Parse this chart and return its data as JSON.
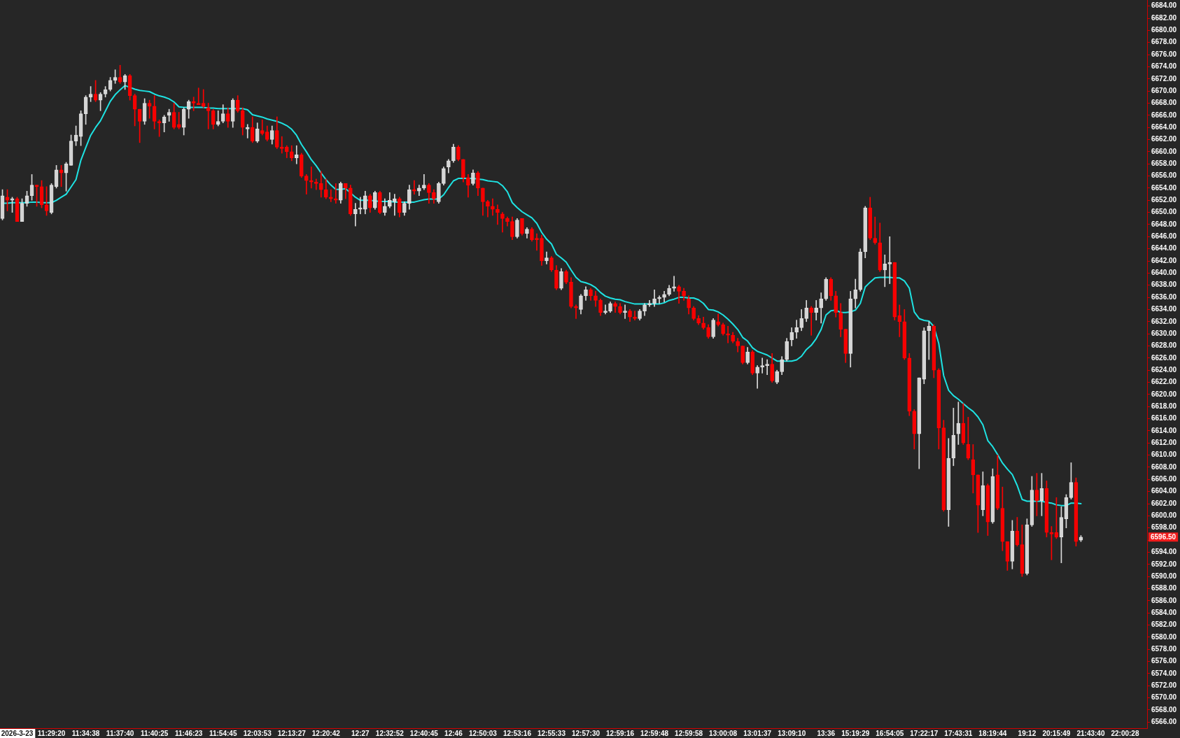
{
  "chart_data": {
    "type": "candlestick",
    "categories": [
      null,
      null,
      null,
      "2026-3-23",
      null,
      null,
      null,
      null,
      null,
      null,
      "11:29:20",
      null,
      null,
      null,
      null,
      null,
      null,
      "11:34:38",
      null,
      null,
      null,
      null,
      null,
      null,
      "11:37:40",
      null,
      null,
      null,
      null,
      null,
      null,
      "11:40:25",
      null,
      null,
      null,
      null,
      null,
      null,
      "11:46:23",
      null,
      null,
      null,
      null,
      null,
      null,
      "11:54:45",
      null,
      null,
      null,
      null,
      null,
      null,
      "12:03:53",
      null,
      null,
      null,
      null,
      null,
      null,
      "12:13:27",
      null,
      null,
      null,
      null,
      null,
      null,
      "12:20:42",
      null,
      null,
      null,
      null,
      null,
      null,
      "12:27",
      null,
      null,
      null,
      null,
      null,
      "12:32:52",
      null,
      null,
      null,
      null,
      null,
      null,
      "12:40:45",
      null,
      null,
      null,
      null,
      null,
      "12:46",
      null,
      null,
      null,
      null,
      null,
      "12:50:03",
      null,
      null,
      null,
      null,
      null,
      null,
      "12:53:16",
      null,
      null,
      null,
      null,
      null,
      null,
      "12:55:33",
      null,
      null,
      null,
      null,
      null,
      null,
      "12:57:30",
      null,
      null,
      null,
      null,
      null,
      null,
      "12:59:16",
      null,
      null,
      null,
      null,
      null,
      null,
      "12:59:48",
      null,
      null,
      null,
      null,
      null,
      null,
      "12:59:58",
      null,
      null,
      null,
      null,
      null,
      null,
      "13:00:08",
      null,
      null,
      null,
      null,
      null,
      null,
      "13:01:37",
      null,
      null,
      null,
      null,
      null,
      null,
      "13:09:10",
      null,
      null,
      null,
      null,
      null,
      null,
      "13:36",
      null,
      null,
      null,
      null,
      null,
      "15:19:29",
      null,
      null,
      null,
      null,
      null,
      null,
      "16:54:05",
      null,
      null,
      null,
      null,
      null,
      null,
      "17:22:17",
      null,
      null,
      null,
      null,
      null,
      null,
      "17:43:31",
      null,
      null,
      null,
      null,
      null,
      null,
      "18:19:44",
      null,
      null,
      null,
      null,
      null,
      null,
      "19:12",
      null,
      null,
      null,
      null,
      null,
      "20:15:49",
      null,
      null,
      null,
      null,
      null,
      null,
      "21:43:40",
      null,
      null,
      null,
      null,
      null,
      null,
      "22:00:28",
      null,
      null,
      null,
      null
    ],
    "ohlc": [
      [
        6649,
        6653.75,
        6648.75,
        6652.75
      ],
      [
        6652.5,
        6653.75,
        6650.25,
        6652
      ],
      [
        6652,
        6652.5,
        6650,
        6652.25
      ],
      [
        6652.25,
        6652.5,
        6648.5,
        6648.5
      ],
      [
        6648.5,
        6652.25,
        6648.5,
        6651.5
      ],
      [
        6651.5,
        6653.5,
        6651,
        6652.75
      ],
      [
        6652.75,
        6656.25,
        6652,
        6654.5
      ],
      [
        6654.5,
        6654.5,
        6651,
        6654.25
      ],
      [
        6654.25,
        6655.25,
        6650.75,
        6651.25
      ],
      [
        6651.25,
        6654.25,
        6649.5,
        6650.25
      ],
      [
        6650,
        6654.75,
        6649.75,
        6654.5
      ],
      [
        6654.25,
        6657.75,
        6654,
        6657
      ],
      [
        6657,
        6657.75,
        6654.25,
        6656.5
      ],
      [
        6656.5,
        6658.25,
        6653.5,
        6658
      ],
      [
        6657.75,
        6662.75,
        6657.75,
        6661.75
      ],
      [
        6661.75,
        6664.25,
        6661,
        6662.75
      ],
      [
        6662.5,
        6666.75,
        6661,
        6666.25
      ],
      [
        6666.25,
        6669.25,
        6664.5,
        6669
      ],
      [
        6669,
        6670.75,
        6668.25,
        6669.5
      ],
      [
        6669.5,
        6671.75,
        6668.25,
        6668.5
      ],
      [
        6668.5,
        6669.75,
        6666.75,
        6669.5
      ],
      [
        6669.5,
        6670.75,
        6669,
        6670.25
      ],
      [
        6670.25,
        6672.25,
        6670,
        6671.75
      ],
      [
        6671.75,
        6673.5,
        6671.25,
        6672.25
      ],
      [
        6672.25,
        6674.25,
        6671.25,
        6671.5
      ],
      [
        6671.5,
        6672.75,
        6670.25,
        6672.5
      ],
      [
        6672.5,
        6672.75,
        6668.5,
        6669.25
      ],
      [
        6669.25,
        6669.5,
        6664.25,
        6667
      ],
      [
        6667,
        6667,
        6661.5,
        6665
      ],
      [
        6665,
        6668.75,
        6664.5,
        6668
      ],
      [
        6668,
        6668.5,
        6665.5,
        6667.5
      ],
      [
        6667.5,
        6669.25,
        6663.75,
        6665
      ],
      [
        6665,
        6665.25,
        6662.5,
        6664.75
      ],
      [
        6664.75,
        6666,
        6663.25,
        6665.75
      ],
      [
        6666,
        6667,
        6665,
        6666.5
      ],
      [
        6666.5,
        6668,
        6663.75,
        6664
      ],
      [
        6664.5,
        6666.5,
        6663.75,
        6664
      ],
      [
        6664,
        6667.25,
        6662.75,
        6667
      ],
      [
        6667,
        6668.5,
        6665.5,
        6668.25
      ],
      [
        6668.25,
        6669,
        6666.75,
        6668
      ],
      [
        6668,
        6670.5,
        6667.75,
        6667.75
      ],
      [
        6668,
        6670.25,
        6667.25,
        6667.5
      ],
      [
        6667.25,
        6668,
        6663.75,
        6666.75
      ],
      [
        6666.75,
        6667,
        6663.75,
        6664.5
      ],
      [
        6664.5,
        6666.75,
        6664.25,
        6665
      ],
      [
        6665,
        6667.75,
        6664.75,
        6666.25
      ],
      [
        6666.25,
        6667.25,
        6664,
        6665
      ],
      [
        6665,
        6668.75,
        6664,
        6668.5
      ],
      [
        6668.5,
        6669.25,
        6666.5,
        6666.75
      ],
      [
        6666.75,
        6667.25,
        6662.75,
        6664
      ],
      [
        6663.75,
        6664.5,
        6662.25,
        6664
      ],
      [
        6664,
        6665.75,
        6661.5,
        6661.75
      ],
      [
        6661.75,
        6664.75,
        6661.5,
        6663.75
      ],
      [
        6663.5,
        6665.25,
        6662.75,
        6663
      ],
      [
        6663.25,
        6664.25,
        6661.75,
        6662
      ],
      [
        6662,
        6664.25,
        6661.25,
        6663.5
      ],
      [
        6663.5,
        6665.75,
        6660.5,
        6660.75
      ],
      [
        6660.75,
        6662.5,
        6659.75,
        6660.5
      ],
      [
        6660.75,
        6661,
        6659,
        6660
      ],
      [
        6660,
        6661,
        6658.5,
        6659
      ],
      [
        6659,
        6661,
        6658,
        6659.5
      ],
      [
        6659.5,
        6659.75,
        6655.75,
        6656
      ],
      [
        6656,
        6656.25,
        6653,
        6655.25
      ],
      [
        6655.25,
        6657.5,
        6654,
        6655
      ],
      [
        6655,
        6655.5,
        6653.75,
        6654.75
      ],
      [
        6654.75,
        6656.75,
        6652.5,
        6653.75
      ],
      [
        6653.75,
        6655.5,
        6652.25,
        6652.5
      ],
      [
        6652.5,
        6653.75,
        6651.75,
        6652.25
      ],
      [
        6652.25,
        6654.75,
        6651.5,
        6652
      ],
      [
        6652,
        6655,
        6651.5,
        6654.75
      ],
      [
        6654.75,
        6654.75,
        6652.25,
        6654
      ],
      [
        6654,
        6654.5,
        6649.5,
        6649.75
      ],
      [
        6649.75,
        6651.5,
        6647.75,
        6650.5
      ],
      [
        6650.5,
        6652.5,
        6649.75,
        6650.75
      ],
      [
        6650.5,
        6653.5,
        6649.75,
        6652.75
      ],
      [
        6652.75,
        6653,
        6650,
        6650.75
      ],
      [
        6650.75,
        6653.5,
        6650.5,
        6653.25
      ],
      [
        6653.25,
        6653.5,
        6649.75,
        6650
      ],
      [
        6650,
        6652.25,
        6649.5,
        6651
      ],
      [
        6651,
        6653.25,
        6650.75,
        6652
      ],
      [
        6651.75,
        6653,
        6649.5,
        6652.25
      ],
      [
        6652.25,
        6652.5,
        6649.25,
        6650
      ],
      [
        6650,
        6651.75,
        6649.5,
        6651.5
      ],
      [
        6651.5,
        6654.5,
        6650.5,
        6653.75
      ],
      [
        6653.75,
        6655.25,
        6653,
        6653.5
      ],
      [
        6653.5,
        6654.5,
        6652.75,
        6654
      ],
      [
        6654,
        6656.25,
        6653.75,
        6654.5
      ],
      [
        6654.5,
        6654.75,
        6651.5,
        6653.25
      ],
      [
        6653.25,
        6653.75,
        6651.5,
        6652.25
      ],
      [
        6651.75,
        6655,
        6651.5,
        6654.75
      ],
      [
        6654.75,
        6657.5,
        6654.5,
        6657.25
      ],
      [
        6657.5,
        6658.75,
        6656.5,
        6658.5
      ],
      [
        6658.5,
        6661.25,
        6658.25,
        6660.75
      ],
      [
        6660.75,
        6661,
        6658.5,
        6658.75
      ],
      [
        6658.75,
        6658.75,
        6655,
        6655.75
      ],
      [
        6655.75,
        6656.25,
        6652.5,
        6654.5
      ],
      [
        6654.75,
        6657,
        6654.5,
        6656.5
      ],
      [
        6656.5,
        6656.75,
        6652.75,
        6654
      ],
      [
        6654,
        6654,
        6649.5,
        6651.75
      ],
      [
        6651.75,
        6652,
        6649.25,
        6651
      ],
      [
        6651,
        6652.25,
        6649.5,
        6650.5
      ],
      [
        6650.5,
        6651.25,
        6648,
        6650
      ],
      [
        6649.75,
        6650,
        6646.75,
        6649
      ],
      [
        6649,
        6649.25,
        6647.75,
        6648.5
      ],
      [
        6648.5,
        6649.25,
        6645.5,
        6646
      ],
      [
        6646,
        6649,
        6645.75,
        6648.75
      ],
      [
        6649,
        6649,
        6646.25,
        6646.5
      ],
      [
        6646.5,
        6647.5,
        6645.75,
        6647.25
      ],
      [
        6647.25,
        6647.5,
        6645.25,
        6645.5
      ],
      [
        6645.75,
        6646.5,
        6643.75,
        6645.5
      ],
      [
        6645.75,
        6646.25,
        6641.25,
        6642
      ],
      [
        6642,
        6643.5,
        6641.5,
        6642.5
      ],
      [
        6642.5,
        6642.75,
        6640.25,
        6640.5
      ],
      [
        6640.5,
        6641.25,
        6637.25,
        6637.5
      ],
      [
        6637.5,
        6640.75,
        6637.25,
        6640.25
      ],
      [
        6640.25,
        6640.5,
        6638.25,
        6638.5
      ],
      [
        6638.5,
        6639.25,
        6634.25,
        6634.5
      ],
      [
        6634.5,
        6634.75,
        6632.5,
        6634.25
      ],
      [
        6634,
        6636.5,
        6633.25,
        6636.25
      ],
      [
        6636.25,
        6637.75,
        6635.5,
        6637.25
      ],
      [
        6637.25,
        6637.5,
        6635.5,
        6636.25
      ],
      [
        6636.25,
        6637,
        6634.5,
        6635.5
      ],
      [
        6635.5,
        6635.75,
        6633,
        6633.5
      ],
      [
        6633.5,
        6634.75,
        6633.25,
        6633.75
      ],
      [
        6633.75,
        6635.25,
        6633.5,
        6635
      ],
      [
        6635,
        6635.25,
        6633.5,
        6634.5
      ],
      [
        6634.5,
        6635,
        6633.25,
        6633.5
      ],
      [
        6633.5,
        6634.75,
        6632.5,
        6633.75
      ],
      [
        6633.75,
        6634,
        6632,
        6632.75
      ],
      [
        6632.75,
        6633.75,
        6632.25,
        6632.5
      ],
      [
        6632.5,
        6634,
        6632.25,
        6633.75
      ],
      [
        6633.75,
        6635,
        6633,
        6634.75
      ],
      [
        6634.75,
        6635.5,
        6634.5,
        6635
      ],
      [
        6635,
        6637.25,
        6634.5,
        6635.75
      ],
      [
        6635.75,
        6636.25,
        6635,
        6636
      ],
      [
        6636,
        6637,
        6635.25,
        6636.5
      ],
      [
        6636.5,
        6638,
        6636.25,
        6637.5
      ],
      [
        6637.5,
        6639.5,
        6637,
        6637.75
      ],
      [
        6637.75,
        6638,
        6635,
        6637
      ],
      [
        6637,
        6637.5,
        6635.5,
        6636.25
      ],
      [
        6635.75,
        6636.25,
        6633.25,
        6634.25
      ],
      [
        6634.25,
        6634.5,
        6632.25,
        6632.5
      ],
      [
        6632.5,
        6633,
        6631.5,
        6631.75
      ],
      [
        6631.75,
        6632.75,
        6630.75,
        6631
      ],
      [
        6631,
        6631.5,
        6629.25,
        6629.5
      ],
      [
        6629.5,
        6632.5,
        6629.25,
        6632.25
      ],
      [
        6632,
        6633.25,
        6631.25,
        6631.5
      ],
      [
        6631.5,
        6631.75,
        6629.75,
        6630
      ],
      [
        6630,
        6631.25,
        6628.5,
        6629.75
      ],
      [
        6629.75,
        6630.25,
        6628.5,
        6628.75
      ],
      [
        6628.75,
        6629.25,
        6627,
        6628
      ],
      [
        6628,
        6628,
        6625,
        6625.25
      ],
      [
        6625.25,
        6627.75,
        6625,
        6627
      ],
      [
        6627,
        6627.25,
        6623.25,
        6623.5
      ],
      [
        6623.5,
        6624.75,
        6621,
        6624.5
      ],
      [
        6624.5,
        6626,
        6623.5,
        6624.75
      ],
      [
        6624.75,
        6625.75,
        6623.25,
        6625
      ],
      [
        6625,
        6626.75,
        6622,
        6622.25
      ],
      [
        6622,
        6624,
        6621.75,
        6623.75
      ],
      [
        6623.75,
        6626.25,
        6623.25,
        6625.75
      ],
      [
        6625.75,
        6629.25,
        6625.5,
        6628.75
      ],
      [
        6629,
        6631,
        6628,
        6630.25
      ],
      [
        6630.25,
        6632.25,
        6629.25,
        6631
      ],
      [
        6631,
        6634,
        6630.5,
        6632.5
      ],
      [
        6632.5,
        6635.5,
        6632,
        6634.25
      ],
      [
        6634.25,
        6634.5,
        6629.75,
        6633.5
      ],
      [
        6633.5,
        6635.5,
        6632.25,
        6634.25
      ],
      [
        6634.25,
        6636.75,
        6631.75,
        6635.75
      ],
      [
        6635.75,
        6639.25,
        6635.5,
        6639
      ],
      [
        6639,
        6639.25,
        6635.5,
        6636.25
      ],
      [
        6636.25,
        6637,
        6632.75,
        6633.5
      ],
      [
        6633.5,
        6635,
        6629.5,
        6630.75
      ],
      [
        6630.75,
        6630.75,
        6625.25,
        6626.75
      ],
      [
        6626.75,
        6637,
        6624.5,
        6635.75
      ],
      [
        6635.75,
        6639,
        6634.25,
        6637.25
      ],
      [
        6637.25,
        6644,
        6637,
        6643.5
      ],
      [
        6643.5,
        6651,
        6642.5,
        6650.75
      ],
      [
        6650.75,
        6652.5,
        6645.5,
        6645.75
      ],
      [
        6645.75,
        6649.25,
        6644.75,
        6645
      ],
      [
        6645,
        6648.25,
        6640.25,
        6640.5
      ],
      [
        6640.5,
        6643,
        6637.75,
        6641.5
      ],
      [
        6641.5,
        6646,
        6638.25,
        6641.75
      ],
      [
        6641.75,
        6641.75,
        6632.25,
        6632.75
      ],
      [
        6633,
        6634.75,
        6629.5,
        6632
      ],
      [
        6632,
        6634,
        6625.75,
        6626
      ],
      [
        6626,
        6626.75,
        6616.5,
        6617.25
      ],
      [
        6617.25,
        6617.5,
        6611,
        6613.5
      ],
      [
        6613.5,
        6622.75,
        6607.75,
        6622.75
      ],
      [
        6622.5,
        6631,
        6621.75,
        6630.5
      ],
      [
        6630.5,
        6632,
        6625.75,
        6631.25
      ],
      [
        6631.25,
        6631.5,
        6622.75,
        6624
      ],
      [
        6624,
        6624.25,
        6611,
        6614.5
      ],
      [
        6614.5,
        6615.75,
        6600.75,
        6601
      ],
      [
        6601,
        6612.75,
        6598.25,
        6609.5
      ],
      [
        6609.5,
        6617.75,
        6608.25,
        6613.25
      ],
      [
        6613.5,
        6618.75,
        6611.75,
        6615.25
      ],
      [
        6615.25,
        6618.5,
        6611.75,
        6612
      ],
      [
        6611.75,
        6616.25,
        6609.25,
        6609.5
      ],
      [
        6609.25,
        6611.75,
        6603.75,
        6606.75
      ],
      [
        6606.75,
        6606.75,
        6597.25,
        6601.75
      ],
      [
        6601,
        6607.25,
        6600,
        6605
      ],
      [
        6605,
        6605.25,
        6596.75,
        6599
      ],
      [
        6599,
        6607.75,
        6598.75,
        6606.5
      ],
      [
        6606.75,
        6610,
        6601,
        6601.25
      ],
      [
        6601.25,
        6604.75,
        6594.25,
        6595.75
      ],
      [
        6595.75,
        6595.75,
        6591,
        6592.5
      ],
      [
        6592.5,
        6599.25,
        6591.25,
        6597.5
      ],
      [
        6597.5,
        6599.75,
        6595,
        6595.25
      ],
      [
        6595.25,
        6598.5,
        6590,
        6590.5
      ],
      [
        6590.5,
        6599.5,
        6590.25,
        6598.5
      ],
      [
        6598.5,
        6606.5,
        6598.25,
        6604.25
      ],
      [
        6604.25,
        6607,
        6600,
        6602.5
      ],
      [
        6602.5,
        6607,
        6600,
        6604.5
      ],
      [
        6604.5,
        6605.75,
        6596.5,
        6597.25
      ],
      [
        6597.25,
        6598.25,
        6592.75,
        6597
      ],
      [
        6597.25,
        6603,
        6596.25,
        6596.5
      ],
      [
        6596.5,
        6601.5,
        6592.25,
        6599.75
      ],
      [
        6599.5,
        6603.5,
        6598,
        6603
      ],
      [
        6603,
        6608.75,
        6602.75,
        6605.5
      ],
      [
        6605.5,
        6606.25,
        6595,
        6595.75
      ],
      [
        6596,
        6596.75,
        6595.75,
        6596.5
      ],
      null,
      null,
      null,
      null,
      null,
      null,
      null,
      null,
      null,
      null,
      null,
      null,
      null
    ],
    "colors": [
      "#dcdcdc",
      "#ff0000",
      "#dcdcdc",
      "#ff0000",
      "#dcdcdc",
      "#dcdcdc",
      "#dcdcdc",
      "#ff0000",
      "#ff0000",
      "#ff0000",
      "#dcdcdc",
      "#dcdcdc",
      "#ff0000",
      "#dcdcdc",
      "#dcdcdc",
      "#dcdcdc",
      "#dcdcdc",
      "#dcdcdc",
      "#dcdcdc",
      "#ff0000",
      "#dcdcdc",
      "#dcdcdc",
      "#dcdcdc",
      "#dcdcdc",
      "#ff0000",
      "#dcdcdc",
      "#ff0000",
      "#ff0000",
      "#ff0000",
      "#dcdcdc",
      "#ff0000",
      "#ff0000",
      "#ff0000",
      "#dcdcdc",
      "#dcdcdc",
      "#ff0000",
      "#ff0000",
      "#dcdcdc",
      "#dcdcdc",
      "#ff0000",
      "#ff0000",
      "#ff0000",
      "#ff0000",
      "#ff0000",
      "#dcdcdc",
      "#dcdcdc",
      "#ff0000",
      "#dcdcdc",
      "#ff0000",
      "#ff0000",
      "#dcdcdc",
      "#ff0000",
      "#dcdcdc",
      "#ff0000",
      "#ff0000",
      "#dcdcdc",
      "#ff0000",
      "#ff0000",
      "#ff0000",
      "#ff0000",
      "#dcdcdc",
      "#ff0000",
      "#ff0000",
      "#ff0000",
      "#ff0000",
      "#ff0000",
      "#ff0000",
      "#ff0000",
      "#ff0000",
      "#dcdcdc",
      "#ff0000",
      "#ff0000",
      "#dcdcdc",
      "#dcdcdc",
      "#dcdcdc",
      "#ff0000",
      "#dcdcdc",
      "#ff0000",
      "#dcdcdc",
      "#dcdcdc",
      "#dcdcdc",
      "#ff0000",
      "#dcdcdc",
      "#dcdcdc",
      "#ff0000",
      "#dcdcdc",
      "#dcdcdc",
      "#ff0000",
      "#ff0000",
      "#dcdcdc",
      "#dcdcdc",
      "#dcdcdc",
      "#dcdcdc",
      "#ff0000",
      "#ff0000",
      "#ff0000",
      "#dcdcdc",
      "#ff0000",
      "#ff0000",
      "#ff0000",
      "#ff0000",
      "#ff0000",
      "#ff0000",
      "#ff0000",
      "#ff0000",
      "#dcdcdc",
      "#ff0000",
      "#dcdcdc",
      "#ff0000",
      "#ff0000",
      "#ff0000",
      "#dcdcdc",
      "#ff0000",
      "#ff0000",
      "#dcdcdc",
      "#ff0000",
      "#ff0000",
      "#ff0000",
      "#dcdcdc",
      "#dcdcdc",
      "#ff0000",
      "#ff0000",
      "#ff0000",
      "#dcdcdc",
      "#dcdcdc",
      "#ff0000",
      "#ff0000",
      "#dcdcdc",
      "#ff0000",
      "#ff0000",
      "#dcdcdc",
      "#dcdcdc",
      "#dcdcdc",
      "#dcdcdc",
      "#dcdcdc",
      "#dcdcdc",
      "#dcdcdc",
      "#dcdcdc",
      "#ff0000",
      "#ff0000",
      "#ff0000",
      "#ff0000",
      "#ff0000",
      "#ff0000",
      "#ff0000",
      "#dcdcdc",
      "#ff0000",
      "#ff0000",
      "#ff0000",
      "#ff0000",
      "#ff0000",
      "#ff0000",
      "#dcdcdc",
      "#ff0000",
      "#dcdcdc",
      "#dcdcdc",
      "#dcdcdc",
      "#ff0000",
      "#dcdcdc",
      "#dcdcdc",
      "#dcdcdc",
      "#dcdcdc",
      "#dcdcdc",
      "#dcdcdc",
      "#dcdcdc",
      "#ff0000",
      "#dcdcdc",
      "#dcdcdc",
      "#dcdcdc",
      "#ff0000",
      "#ff0000",
      "#ff0000",
      "#ff0000",
      "#dcdcdc",
      "#dcdcdc",
      "#dcdcdc",
      "#dcdcdc",
      "#ff0000",
      "#ff0000",
      "#ff0000",
      "#dcdcdc",
      "#dcdcdc",
      "#ff0000",
      "#ff0000",
      "#ff0000",
      "#ff0000",
      "#ff0000",
      "#dcdcdc",
      "#dcdcdc",
      "#dcdcdc",
      "#ff0000",
      "#ff0000",
      "#ff0000",
      "#dcdcdc",
      "#dcdcdc",
      "#dcdcdc",
      "#ff0000",
      "#ff0000",
      "#ff0000",
      "#ff0000",
      "#dcdcdc",
      "#ff0000",
      "#dcdcdc",
      "#ff0000",
      "#ff0000",
      "#ff0000",
      "#dcdcdc",
      "#ff0000",
      "#ff0000",
      "#dcdcdc",
      "#dcdcdc",
      "#ff0000",
      "#dcdcdc",
      "#ff0000",
      "#ff0000",
      "#ff0000",
      "#dcdcdc",
      "#dcdcdc",
      "#dcdcdc",
      "#ff0000",
      "#dcdcdc",
      null,
      null,
      null,
      null,
      null,
      null,
      null,
      null,
      null,
      null,
      null,
      null,
      null
    ],
    "series": [
      {
        "type": "line",
        "color": "#1ee3e3",
        "values": [
          6651.5,
          6651.5,
          6651.6,
          6651.6,
          6651.6,
          6651.6,
          6651.7,
          6651.7,
          6651.6,
          6651.6,
          6651.6,
          6652.0,
          6652.5,
          6653.0,
          6654.2,
          6655.4,
          6658.6,
          6660.7,
          6662.7,
          6664.0,
          6665.1,
          6666.7,
          6668.3,
          6669.4,
          6670.2,
          6670.9,
          6670.6,
          6670.3,
          6670.1,
          6670.0,
          6669.9,
          6669.5,
          6669.2,
          6669.0,
          6668.7,
          6668.2,
          6667.4,
          6667.3,
          6667.3,
          6667.3,
          6667.3,
          6667.3,
          6667.2,
          6667.2,
          6667.1,
          6667.1,
          6667.1,
          6667.1,
          6667.1,
          6667.1,
          6666.9,
          6666.1,
          6665.9,
          6665.7,
          6665.4,
          6665.2,
          6665.0,
          6664.7,
          6664.3,
          6663.7,
          6662.7,
          6661.2,
          6660.0,
          6658.7,
          6657.7,
          6656.5,
          6655.4,
          6654.5,
          6653.8,
          6653.8,
          6653.9,
          6653.2,
          6652.5,
          6652.0,
          6652.0,
          6652.0,
          6651.9,
          6651.8,
          6651.8,
          6651.8,
          6651.7,
          6651.7,
          6651.7,
          6651.7,
          6651.7,
          6651.9,
          6652.1,
          6652.2,
          6652.2,
          6652.2,
          6652.9,
          6654.1,
          6655.2,
          6655.6,
          6655.6,
          6655.6,
          6655.6,
          6655.5,
          6655.4,
          6655.2,
          6655.1,
          6655.0,
          6654.4,
          6653.4,
          6651.6,
          6650.8,
          6650.1,
          6649.6,
          6649.1,
          6648.2,
          6646.7,
          6645.6,
          6644.8,
          6643.1,
          6642.5,
          6641.8,
          6640.5,
          6639.3,
          6638.6,
          6638.4,
          6638.1,
          6637.6,
          6636.8,
          6636.2,
          6635.9,
          6635.7,
          6635.6,
          6635.3,
          6635.1,
          6634.9,
          6634.9,
          6634.9,
          6634.9,
          6634.9,
          6634.9,
          6635.1,
          6635.5,
          6635.7,
          6636.0,
          6636.0,
          6635.9,
          6635.9,
          6635.6,
          6635.0,
          6634.0,
          6633.9,
          6633.6,
          6633.1,
          6632.4,
          6631.6,
          6630.7,
          6629.4,
          6628.8,
          6627.7,
          6627.1,
          6626.8,
          6626.5,
          6626.0,
          6625.5,
          6625.5,
          6625.5,
          6625.5,
          6625.7,
          6626.3,
          6627.4,
          6628.1,
          6629.2,
          6630.7,
          6633.1,
          6633.8,
          6633.9,
          6633.5,
          6633.5,
          6633.6,
          6633.9,
          6635.0,
          6637.7,
          6638.5,
          6639.2,
          6639.3,
          6639.3,
          6639.3,
          6639.2,
          6639.2,
          6638.7,
          6637.5,
          6633.6,
          6632.5,
          6632.2,
          6632.1,
          6631.2,
          6628.4,
          6623.1,
          6620.7,
          6619.8,
          6619.2,
          6618.5,
          6617.8,
          6617.2,
          6616.3,
          6615.0,
          6612.4,
          6611.4,
          6610.1,
          6608.7,
          6607.7,
          6606.8,
          6605.0,
          6602.7,
          6602.4,
          6602.4,
          6602.4,
          6602.4,
          6602.2,
          6602.1,
          6601.8,
          6601.7,
          6601.7,
          6602.1,
          6602.1,
          6602.0,
          null,
          null,
          null,
          null,
          null,
          null,
          null,
          null,
          null,
          null,
          null,
          null,
          null
        ]
      }
    ],
    "ylim": [
      6565,
      6685
    ],
    "yticks": [
      {
        "value": 6566,
        "label": "6566.00"
      },
      {
        "value": 6568,
        "label": "6568.00"
      },
      {
        "value": 6570,
        "label": "6570.00"
      },
      {
        "value": 6572,
        "label": "6572.00"
      },
      {
        "value": 6574,
        "label": "6574.00"
      },
      {
        "value": 6576,
        "label": "6576.00"
      },
      {
        "value": 6578,
        "label": "6578.00"
      },
      {
        "value": 6580,
        "label": "6580.00"
      },
      {
        "value": 6582,
        "label": "6582.00"
      },
      {
        "value": 6584,
        "label": "6584.00"
      },
      {
        "value": 6586,
        "label": "6586.00"
      },
      {
        "value": 6588,
        "label": "6588.00"
      },
      {
        "value": 6590,
        "label": "6590.00"
      },
      {
        "value": 6592,
        "label": "6592.00"
      },
      {
        "value": 6594,
        "label": "6594.00"
      },
      {
        "value": 6596,
        "label": null
      },
      {
        "value": 6598,
        "label": "6598.00"
      },
      {
        "value": 6600,
        "label": "6600.00"
      },
      {
        "value": 6602,
        "label": "6602.00"
      },
      {
        "value": 6604,
        "label": "6604.00"
      },
      {
        "value": 6606,
        "label": "6606.00"
      },
      {
        "value": 6608,
        "label": "6608.00"
      },
      {
        "value": 6610,
        "label": "6610.00"
      },
      {
        "value": 6612,
        "label": "6612.00"
      },
      {
        "value": 6614,
        "label": "6614.00"
      },
      {
        "value": 6616,
        "label": "6616.00"
      },
      {
        "value": 6618,
        "label": "6618.00"
      },
      {
        "value": 6620,
        "label": "6620.00"
      },
      {
        "value": 6622,
        "label": "6622.00"
      },
      {
        "value": 6624,
        "label": "6624.00"
      },
      {
        "value": 6626,
        "label": "6626.00"
      },
      {
        "value": 6628,
        "label": "6628.00"
      },
      {
        "value": 6630,
        "label": "6630.00"
      },
      {
        "value": 6632,
        "label": "6632.00"
      },
      {
        "value": 6634,
        "label": "6634.00"
      },
      {
        "value": 6636,
        "label": "6636.00"
      },
      {
        "value": 6638,
        "label": "6638.00"
      },
      {
        "value": 6640,
        "label": "6640.00"
      },
      {
        "value": 6642,
        "label": "6642.00"
      },
      {
        "value": 6644,
        "label": "6644.00"
      },
      {
        "value": 6646,
        "label": "6646.00"
      },
      {
        "value": 6648,
        "label": "6648.00"
      },
      {
        "value": 6650,
        "label": "6650.00"
      },
      {
        "value": 6652,
        "label": "6652.00"
      },
      {
        "value": 6654,
        "label": "6654.00"
      },
      {
        "value": 6656,
        "label": "6656.00"
      },
      {
        "value": 6658,
        "label": "6658.00"
      },
      {
        "value": 6660,
        "label": "6660.00"
      },
      {
        "value": 6662,
        "label": "6662.00"
      },
      {
        "value": 6664,
        "label": "6664.00"
      },
      {
        "value": 6666,
        "label": "6666.00"
      },
      {
        "value": 6668,
        "label": "6668.00"
      },
      {
        "value": 6670,
        "label": "6670.00"
      },
      {
        "value": 6672,
        "label": "6672.00"
      },
      {
        "value": 6674,
        "label": "6674.00"
      },
      {
        "value": 6676,
        "label": "6676.00"
      },
      {
        "value": 6678,
        "label": "6678.00"
      },
      {
        "value": 6680,
        "label": "6680.00"
      },
      {
        "value": 6682,
        "label": "6682.00"
      },
      {
        "value": 6684,
        "label": "6684.00"
      }
    ],
    "annotations": [
      {
        "text": "6596.50",
        "y": 6596.5
      }
    ]
  }
}
